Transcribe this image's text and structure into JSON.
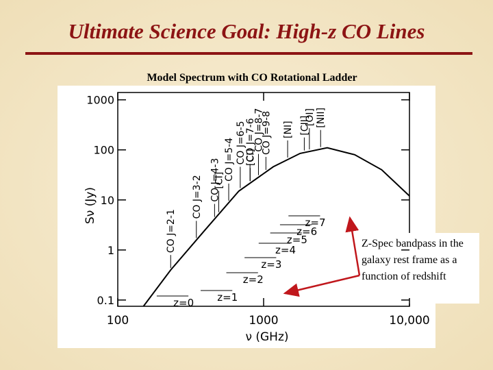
{
  "slide": {
    "title": "Ultimate Science Goal:  High-z CO Lines",
    "callout": "Z-Spec bandpass in the galaxy rest frame as a function of redshift"
  },
  "chart_data": {
    "type": "line",
    "title": "Model Spectrum with CO Rotational Ladder",
    "x_label": "ν (GHz)",
    "y_label": "Sν (Jy)",
    "log_x": true,
    "log_y": true,
    "xlim": [
      100,
      10000
    ],
    "ylim": [
      0.075,
      1400
    ],
    "xticks": [
      100,
      1000,
      {
        "value": 10000,
        "label": "10,000"
      }
    ],
    "yticks": [
      1000,
      100,
      10,
      1,
      0.1
    ],
    "x": [
      150,
      231,
      396,
      676,
      1165,
      1780,
      2730,
      4210,
      6450,
      10000
    ],
    "series": [
      {
        "color": "#000000",
        "values": [
          0.075,
          0.4,
          2.5,
          15,
          46,
          85,
          110,
          80,
          40,
          12
        ]
      }
    ],
    "lines": [
      {
        "label": "CO J=2-1",
        "freq": 230.5
      },
      {
        "label": "CO J=3-2",
        "freq": 345.8
      },
      {
        "label": "[CI]",
        "freq": 492.2
      },
      {
        "label": "CO J=4-3",
        "freq": 461.0
      },
      {
        "label": "CO J=5-4",
        "freq": 576.3
      },
      {
        "label": "CO J=6-5",
        "freq": 691.5
      },
      {
        "label": "[CI]",
        "freq": 809.3
      },
      {
        "label": "CO J=7-6",
        "freq": 806.7
      },
      {
        "label": "CO J=8-7",
        "freq": 921.8
      },
      {
        "label": "CO J=9-8",
        "freq": 1036.9
      },
      {
        "label": "[NI]",
        "freq": 1461
      },
      {
        "label": "[OI]",
        "freq": 2060
      },
      {
        "label": "[CII]",
        "freq": 1900.5
      },
      {
        "label": "[NII]",
        "freq": 2459
      }
    ],
    "zspec_band_ghz": [
      185,
      305
    ],
    "redshifts": [
      0,
      1,
      2,
      3,
      4,
      5,
      6,
      7
    ],
    "redshift_labels": [
      "z=0",
      "z=1",
      "z=2",
      "z=3",
      "z=4",
      "z=5",
      "z=6",
      "z=7"
    ]
  }
}
